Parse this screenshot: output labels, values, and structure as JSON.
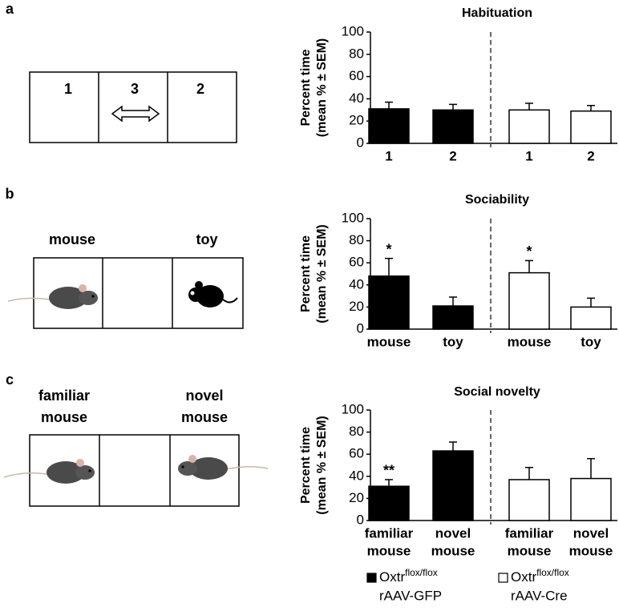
{
  "panel_letters": [
    "a",
    "b",
    "c"
  ],
  "diagrams": [
    {
      "labels": [
        "1",
        "3",
        "2"
      ]
    },
    {
      "labels": [
        "mouse",
        "toy"
      ]
    },
    {
      "labels": [
        [
          "familiar",
          "mouse"
        ],
        [
          "novel",
          "mouse"
        ]
      ]
    }
  ],
  "legend": [
    {
      "text": "Oxtr",
      "sup": "flox/flox",
      "line2": "rAAV-GFP",
      "color": "#000000"
    },
    {
      "text": "Oxtr",
      "sup": "flox/flox",
      "line2": "rAAV-Cre",
      "color": "#ffffff"
    }
  ],
  "chart_data": [
    {
      "type": "bar",
      "title": "Habituation",
      "ylabel": [
        "Percent time",
        "(mean %  ± SEM)"
      ],
      "categories": [
        [
          "1"
        ],
        [
          "2"
        ],
        [
          "1"
        ],
        [
          "2"
        ]
      ],
      "series": [
        {
          "color": "#000000",
          "values": [
            31,
            30,
            null,
            null
          ],
          "errors": [
            6,
            5,
            null,
            null
          ]
        },
        {
          "color": "#ffffff",
          "values": [
            null,
            null,
            30,
            29
          ],
          "errors": [
            null,
            null,
            6,
            5
          ]
        }
      ],
      "ylim": [
        0,
        100
      ],
      "yticks": [
        0,
        20,
        40,
        60,
        80,
        100
      ]
    },
    {
      "type": "bar",
      "title": "Sociability",
      "ylabel": [
        "Percent time",
        "(mean %  ± SEM)"
      ],
      "categories": [
        [
          "mouse"
        ],
        [
          "toy"
        ],
        [
          "mouse"
        ],
        [
          "toy"
        ]
      ],
      "series": [
        {
          "color": "#000000",
          "values": [
            48,
            21,
            null,
            null
          ],
          "errors": [
            16,
            8,
            null,
            null
          ]
        },
        {
          "color": "#ffffff",
          "values": [
            null,
            null,
            51,
            20
          ],
          "errors": [
            null,
            null,
            11,
            8
          ]
        }
      ],
      "annotations": [
        "*",
        null,
        "*",
        null
      ],
      "ylim": [
        0,
        100
      ],
      "yticks": [
        0,
        20,
        40,
        60,
        80,
        100
      ]
    },
    {
      "type": "bar",
      "title": "Social novelty",
      "ylabel": [
        "Percent time",
        "(mean %  ± SEM)"
      ],
      "categories": [
        [
          "familiar",
          "mouse"
        ],
        [
          "novel",
          "mouse"
        ],
        [
          "familiar",
          "mouse"
        ],
        [
          "novel",
          "mouse"
        ]
      ],
      "series": [
        {
          "color": "#000000",
          "values": [
            31,
            63,
            null,
            null
          ],
          "errors": [
            6,
            8,
            null,
            null
          ]
        },
        {
          "color": "#ffffff",
          "values": [
            null,
            null,
            37,
            38
          ],
          "errors": [
            null,
            null,
            11,
            18
          ]
        }
      ],
      "annotations": [
        "**",
        null,
        null,
        null
      ],
      "ylim": [
        0,
        100
      ],
      "yticks": [
        0,
        20,
        40,
        60,
        80,
        100
      ]
    }
  ]
}
